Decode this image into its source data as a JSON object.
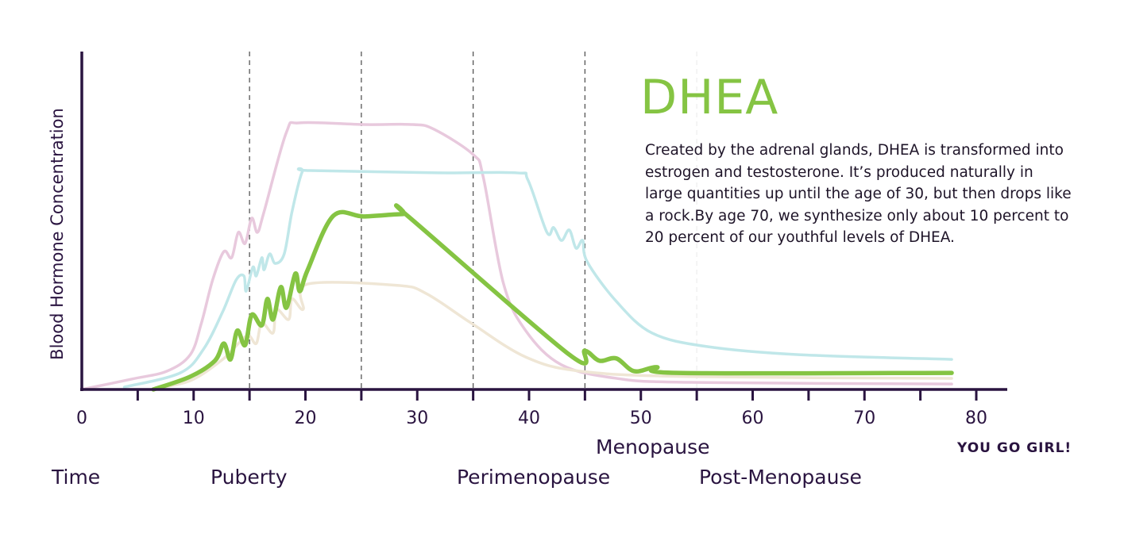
{
  "chart_data": {
    "type": "line",
    "title": "DHEA",
    "description": "Created by the adrenal glands, DHEA is transformed into estrogen and testosterone. It’s produced naturally in large quantities up until the age of 30, but then drops like a rock.By age 70, we synthesize only about 10 percent to 20 percent of our youthful levels of DHEA.",
    "xlabel": "Time",
    "ylabel": "Blood Hormone Concentration",
    "xlim": [
      0,
      80
    ],
    "ylim": [
      0,
      100
    ],
    "x_ticks": [
      0,
      10,
      20,
      30,
      40,
      50,
      60,
      70,
      80
    ],
    "minor_ticks": [
      5,
      15,
      25,
      35,
      45,
      55,
      65,
      75
    ],
    "y_ticks": [],
    "grid": false,
    "legend": "none",
    "reference_lines": [
      15,
      25,
      35,
      45,
      55
    ],
    "phase_labels": {
      "puberty": "Puberty",
      "perimenopause": "Perimenopause",
      "menopause": "Menopause",
      "post_menopause": "Post-Menopause",
      "you_go_girl": "YOU GO GIRL!"
    },
    "series": [
      {
        "color": "#e8c9dd",
        "highlight": false,
        "points": [
          [
            0,
            0
          ],
          [
            4.5,
            3.1
          ],
          [
            7.6,
            5.4
          ],
          [
            9.7,
            10.3
          ],
          [
            10.7,
            19.7
          ],
          [
            11.7,
            32.4
          ],
          [
            12.7,
            40.8
          ],
          [
            13.4,
            39.0
          ],
          [
            14.0,
            46.5
          ],
          [
            14.6,
            43.2
          ],
          [
            15.2,
            50.7
          ],
          [
            15.7,
            46.5
          ],
          [
            16.3,
            52.6
          ],
          [
            18.3,
            76.1
          ],
          [
            19.5,
            78.9
          ],
          [
            25.2,
            78.4
          ],
          [
            29.6,
            78.4
          ],
          [
            31.5,
            77.0
          ],
          [
            35.0,
            69.5
          ],
          [
            35.9,
            62.9
          ],
          [
            37.7,
            31.5
          ],
          [
            39.7,
            17.4
          ],
          [
            42.9,
            7.3
          ],
          [
            47.8,
            3.3
          ],
          [
            54.3,
            2.1
          ],
          [
            77.8,
            1.6
          ]
        ]
      },
      {
        "color": "#c0e7e9",
        "highlight": false,
        "points": [
          [
            3.8,
            0.7
          ],
          [
            8.8,
            4.9
          ],
          [
            10.9,
            12.0
          ],
          [
            12.6,
            23.0
          ],
          [
            13.8,
            32.4
          ],
          [
            14.5,
            33.6
          ],
          [
            14.7,
            29.1
          ],
          [
            15.3,
            36.2
          ],
          [
            15.6,
            33.6
          ],
          [
            16.1,
            39.0
          ],
          [
            16.3,
            35.4
          ],
          [
            16.8,
            40.1
          ],
          [
            17.3,
            37.3
          ],
          [
            18.1,
            40.1
          ],
          [
            18.8,
            52.6
          ],
          [
            19.7,
            64.3
          ],
          [
            20.4,
            64.8
          ],
          [
            31.8,
            64.1
          ],
          [
            38.9,
            64.1
          ],
          [
            39.9,
            62.0
          ],
          [
            41.6,
            46.5
          ],
          [
            42.2,
            47.9
          ],
          [
            42.9,
            44.1
          ],
          [
            43.6,
            47.2
          ],
          [
            44.2,
            41.8
          ],
          [
            44.8,
            44.1
          ],
          [
            45.2,
            37.8
          ],
          [
            47.8,
            26.1
          ],
          [
            51.0,
            16.7
          ],
          [
            55.9,
            12.7
          ],
          [
            64.1,
            10.3
          ],
          [
            77.8,
            8.9
          ]
        ]
      },
      {
        "color": "#efe6d5",
        "highlight": false,
        "points": [
          [
            6.4,
            0.2
          ],
          [
            9.7,
            2.6
          ],
          [
            12.6,
            8.9
          ],
          [
            14.0,
            13.6
          ],
          [
            14.9,
            16.0
          ],
          [
            15.6,
            13.6
          ],
          [
            16.1,
            19.7
          ],
          [
            17.1,
            16.7
          ],
          [
            17.4,
            23.7
          ],
          [
            18.5,
            20.7
          ],
          [
            18.8,
            26.8
          ],
          [
            19.8,
            23.7
          ],
          [
            20.2,
            31.2
          ],
          [
            28.2,
            30.8
          ],
          [
            30.8,
            28.4
          ],
          [
            34.8,
            19.7
          ],
          [
            39.7,
            9.6
          ],
          [
            44.6,
            5.4
          ],
          [
            54.3,
            3.8
          ],
          [
            77.8,
            3.3
          ]
        ]
      },
      {
        "name": "DHEA",
        "color": "#85c443",
        "highlight": true,
        "points": [
          [
            6.4,
            0
          ],
          [
            9.7,
            3.8
          ],
          [
            11.9,
            8.5
          ],
          [
            12.7,
            13.6
          ],
          [
            13.3,
            8.9
          ],
          [
            13.9,
            17.4
          ],
          [
            14.6,
            13.1
          ],
          [
            15.2,
            22.1
          ],
          [
            16.1,
            19.0
          ],
          [
            16.6,
            26.8
          ],
          [
            17.1,
            20.7
          ],
          [
            17.8,
            30.3
          ],
          [
            18.3,
            24.2
          ],
          [
            19.1,
            34.3
          ],
          [
            19.5,
            29.1
          ],
          [
            20.2,
            35.4
          ],
          [
            22.5,
            51.4
          ],
          [
            25.2,
            51.2
          ],
          [
            28.7,
            51.9
          ],
          [
            29.2,
            51.2
          ],
          [
            43.6,
            10.3
          ],
          [
            45.0,
            11.5
          ],
          [
            46.3,
            8.5
          ],
          [
            47.8,
            9.2
          ],
          [
            49.4,
            5.4
          ],
          [
            51.4,
            6.6
          ],
          [
            53.3,
            4.9
          ],
          [
            77.8,
            4.9
          ]
        ]
      }
    ],
    "colors": {
      "axis": "#2a1440",
      "accent": "#85c443",
      "text": "#1e1428"
    }
  }
}
